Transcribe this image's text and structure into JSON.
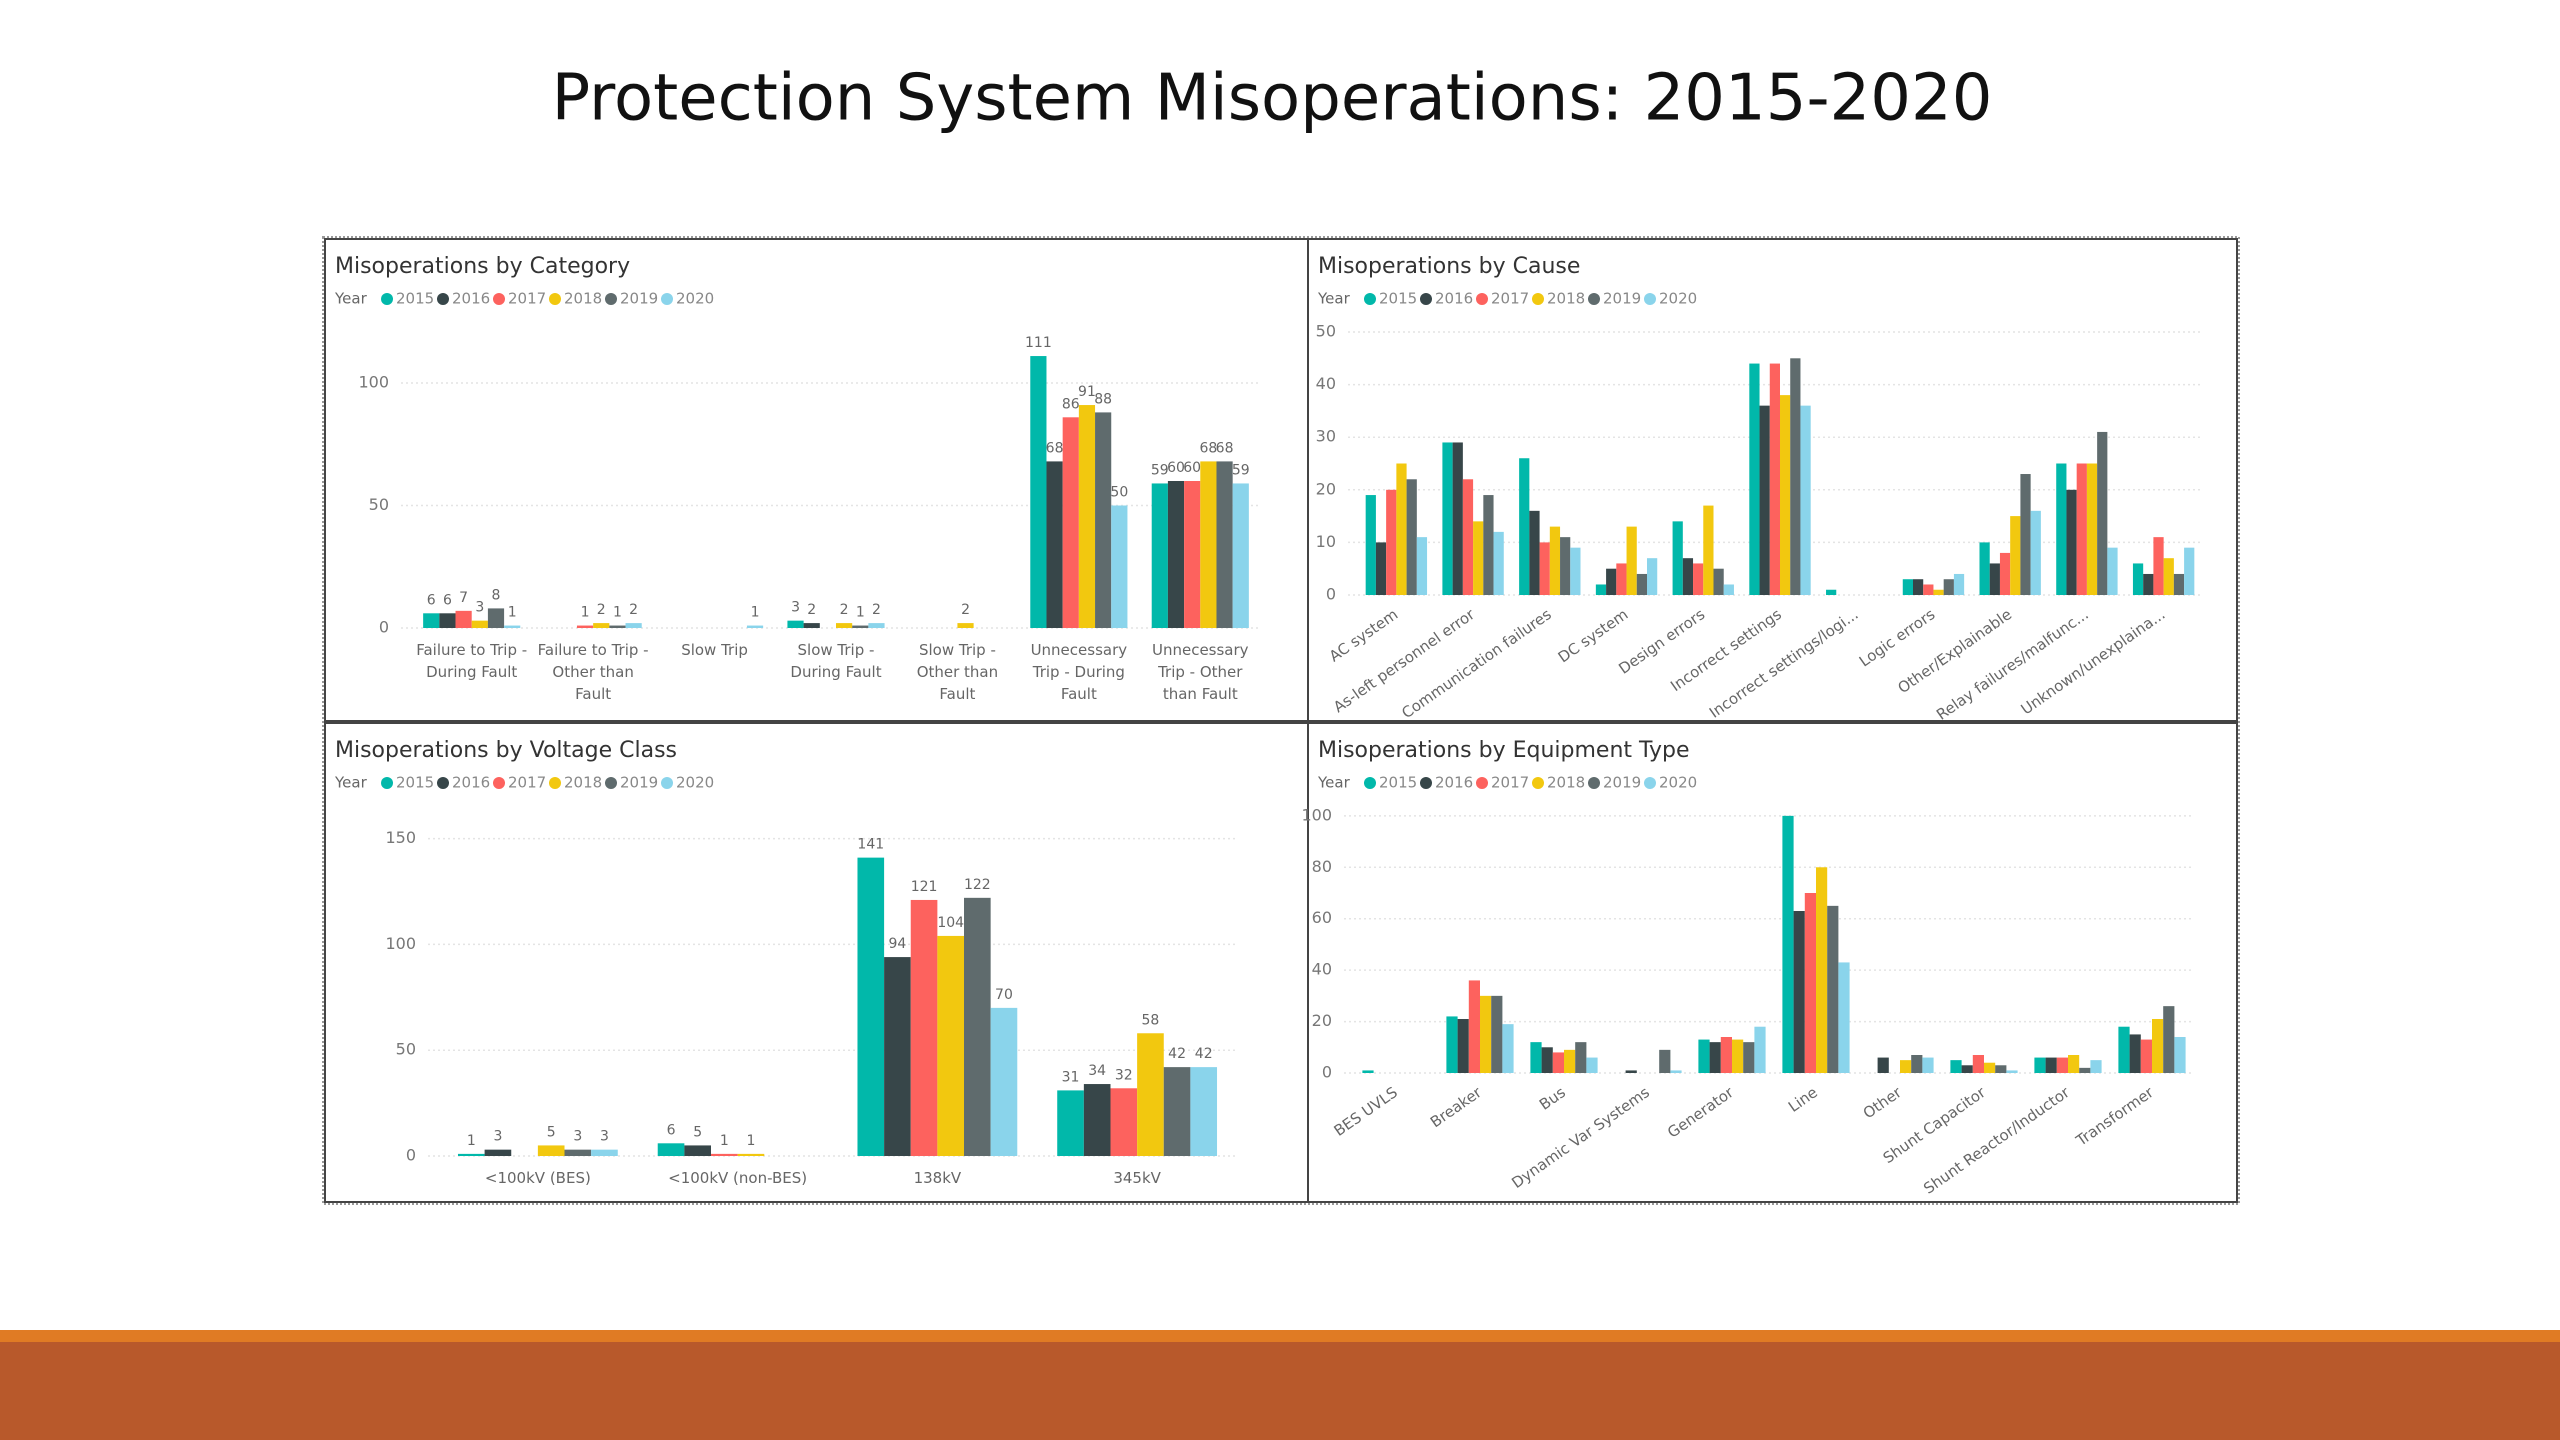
{
  "title": "Protection System Misoperations:  2015-2020",
  "chart_data": [
    {
      "type": "bar",
      "title": "Misoperations by Category",
      "legend_title": "Year",
      "categories": [
        "Failure to Trip - During Fault",
        "Failure to Trip - Other than Fault",
        "Slow Trip",
        "Slow Trip - During Fault",
        "Slow Trip - Other than Fault",
        "Unnecessary Trip - During Fault",
        "Unnecessary Trip - Other than Fault"
      ],
      "series": [
        {
          "name": "2015",
          "color": "#01B8AA",
          "values": [
            6,
            null,
            null,
            3,
            null,
            111,
            59
          ]
        },
        {
          "name": "2016",
          "color": "#374649",
          "values": [
            6,
            null,
            null,
            2,
            null,
            68,
            60
          ]
        },
        {
          "name": "2017",
          "color": "#FD625E",
          "values": [
            7,
            1,
            null,
            null,
            null,
            86,
            60
          ]
        },
        {
          "name": "2018",
          "color": "#F2C80F",
          "values": [
            3,
            2,
            null,
            2,
            2,
            91,
            68
          ]
        },
        {
          "name": "2019",
          "color": "#5F6B6D",
          "values": [
            8,
            1,
            null,
            1,
            null,
            88,
            68
          ]
        },
        {
          "name": "2020",
          "color": "#8AD4EB",
          "values": [
            1,
            2,
            1,
            2,
            null,
            50,
            59
          ]
        }
      ],
      "ylim": [
        0,
        120
      ],
      "yticks": [
        0,
        50,
        100
      ],
      "grid": true,
      "data_labels": true
    },
    {
      "type": "bar",
      "title": "Misoperations by Cause",
      "legend_title": "Year",
      "categories": [
        "AC system",
        "As-left personnel error",
        "Communication failures",
        "DC system",
        "Design errors",
        "Incorrect settings",
        "Incorrect settings/logi...",
        "Logic errors",
        "Other/Explainable",
        "Relay failures/malfunc...",
        "Unknown/unexplaina..."
      ],
      "series": [
        {
          "name": "2015",
          "color": "#01B8AA",
          "values": [
            19,
            29,
            26,
            2,
            14,
            44,
            1,
            3,
            10,
            25,
            6
          ]
        },
        {
          "name": "2016",
          "color": "#374649",
          "values": [
            10,
            29,
            16,
            5,
            7,
            36,
            null,
            3,
            6,
            20,
            4
          ]
        },
        {
          "name": "2017",
          "color": "#FD625E",
          "values": [
            20,
            22,
            10,
            6,
            6,
            44,
            null,
            2,
            8,
            25,
            11
          ]
        },
        {
          "name": "2018",
          "color": "#F2C80F",
          "values": [
            25,
            14,
            13,
            13,
            17,
            38,
            null,
            1,
            15,
            25,
            7
          ]
        },
        {
          "name": "2019",
          "color": "#5F6B6D",
          "values": [
            22,
            19,
            11,
            4,
            5,
            45,
            null,
            3,
            23,
            31,
            4
          ]
        },
        {
          "name": "2020",
          "color": "#8AD4EB",
          "values": [
            11,
            12,
            9,
            7,
            2,
            36,
            null,
            4,
            16,
            9,
            9
          ]
        }
      ],
      "ylim": [
        0,
        50
      ],
      "yticks": [
        0,
        10,
        20,
        30,
        40,
        50
      ],
      "grid": true,
      "data_labels": false
    },
    {
      "type": "bar",
      "title": "Misoperations by Voltage Class",
      "legend_title": "Year",
      "categories": [
        "<100kV (BES)",
        "<100kV (non-BES)",
        "138kV",
        "345kV"
      ],
      "series": [
        {
          "name": "2015",
          "color": "#01B8AA",
          "values": [
            1,
            6,
            141,
            31
          ]
        },
        {
          "name": "2016",
          "color": "#374649",
          "values": [
            3,
            5,
            94,
            34
          ]
        },
        {
          "name": "2017",
          "color": "#FD625E",
          "values": [
            null,
            1,
            121,
            32
          ]
        },
        {
          "name": "2018",
          "color": "#F2C80F",
          "values": [
            5,
            1,
            104,
            58
          ]
        },
        {
          "name": "2019",
          "color": "#5F6B6D",
          "values": [
            3,
            null,
            122,
            42
          ]
        },
        {
          "name": "2020",
          "color": "#8AD4EB",
          "values": [
            3,
            null,
            70,
            42
          ]
        }
      ],
      "ylim": [
        0,
        155
      ],
      "yticks": [
        0,
        50,
        100,
        150
      ],
      "grid": true,
      "data_labels": true
    },
    {
      "type": "bar",
      "title": "Misoperations by Equipment Type",
      "legend_title": "Year",
      "categories": [
        "BES UVLS",
        "Breaker",
        "Bus",
        "Dynamic Var Systems",
        "Generator",
        "Line",
        "Other",
        "Shunt Capacitor",
        "Shunt Reactor/Inductor",
        "Transformer"
      ],
      "series": [
        {
          "name": "2015",
          "color": "#01B8AA",
          "values": [
            1,
            22,
            12,
            null,
            13,
            100,
            null,
            5,
            6,
            18
          ]
        },
        {
          "name": "2016",
          "color": "#374649",
          "values": [
            null,
            21,
            10,
            1,
            12,
            63,
            6,
            3,
            6,
            15
          ]
        },
        {
          "name": "2017",
          "color": "#FD625E",
          "values": [
            null,
            36,
            8,
            null,
            14,
            70,
            null,
            7,
            6,
            13
          ]
        },
        {
          "name": "2018",
          "color": "#F2C80F",
          "values": [
            null,
            30,
            9,
            null,
            13,
            80,
            5,
            4,
            7,
            21
          ]
        },
        {
          "name": "2019",
          "color": "#5F6B6D",
          "values": [
            null,
            30,
            12,
            9,
            12,
            65,
            7,
            3,
            2,
            26
          ]
        },
        {
          "name": "2020",
          "color": "#8AD4EB",
          "values": [
            null,
            19,
            6,
            1,
            18,
            43,
            6,
            1,
            5,
            14
          ]
        }
      ],
      "ylim": [
        0,
        105
      ],
      "yticks": [
        0,
        20,
        40,
        60,
        80,
        100
      ],
      "grid": true,
      "data_labels": false
    }
  ]
}
